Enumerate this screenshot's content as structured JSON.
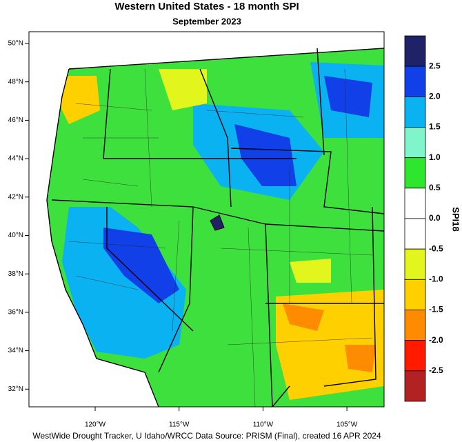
{
  "map": {
    "title": "Western United States - 18 month SPI",
    "subtitle": "September 2023",
    "lat_labels": [
      "50°N",
      "48°N",
      "46°N",
      "44°N",
      "42°N",
      "40°N",
      "38°N",
      "36°N",
      "34°N",
      "32°N"
    ],
    "lon_labels": [
      "120°W",
      "115°W",
      "110°W",
      "105°W"
    ],
    "legend": {
      "title": "SPI18",
      "labels": [
        "2.5",
        "2.0",
        "1.5",
        "1.0",
        "0.5",
        "0.0",
        "-0.5",
        "-1.0",
        "-1.5",
        "-2.0",
        "-2.5"
      ],
      "colors": [
        "#1f2266",
        "#1240e8",
        "#0ab2f2",
        "#80f5cc",
        "#2ee62e",
        "#ffffff",
        "#ffffff",
        "#e2f51c",
        "#ffd000",
        "#ff8c00",
        "#ff1a00",
        "#b22222"
      ]
    },
    "credit": "WestWide Drought Tracker, U Idaho/WRCC Data Source: PRISM (Final), created 16 APR 2024"
  }
}
